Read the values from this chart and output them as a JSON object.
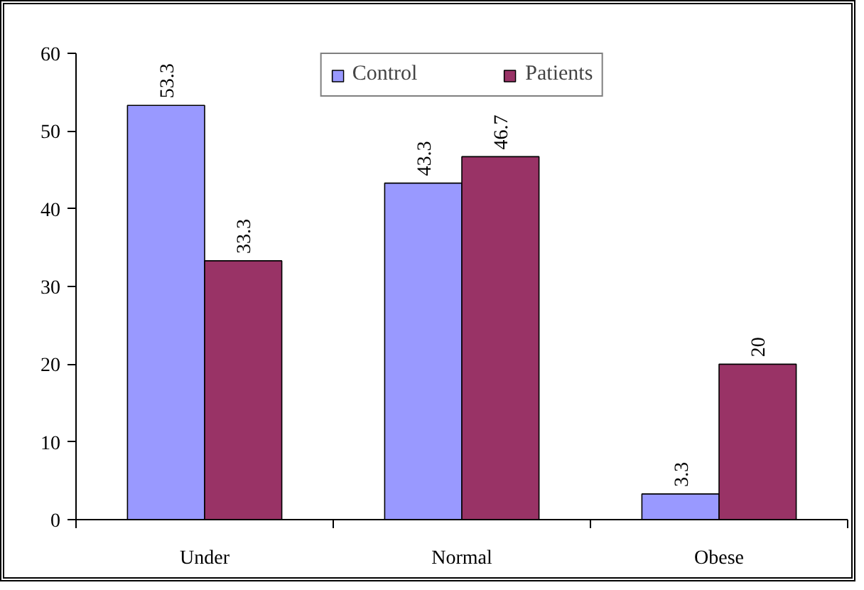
{
  "chart_data": {
    "type": "bar",
    "categories": [
      "Under",
      "Normal",
      "Obese"
    ],
    "series": [
      {
        "name": "Control",
        "color": "#9999ff",
        "values": [
          53.3,
          43.3,
          3.3
        ]
      },
      {
        "name": "Patients",
        "color": "#993366",
        "values": [
          33.3,
          46.7,
          20
        ]
      }
    ],
    "ylim": [
      0,
      60
    ],
    "yticks": [
      0,
      10,
      20,
      30,
      40,
      50,
      60
    ],
    "data_labels": true,
    "legend": "top",
    "grid": false
  }
}
